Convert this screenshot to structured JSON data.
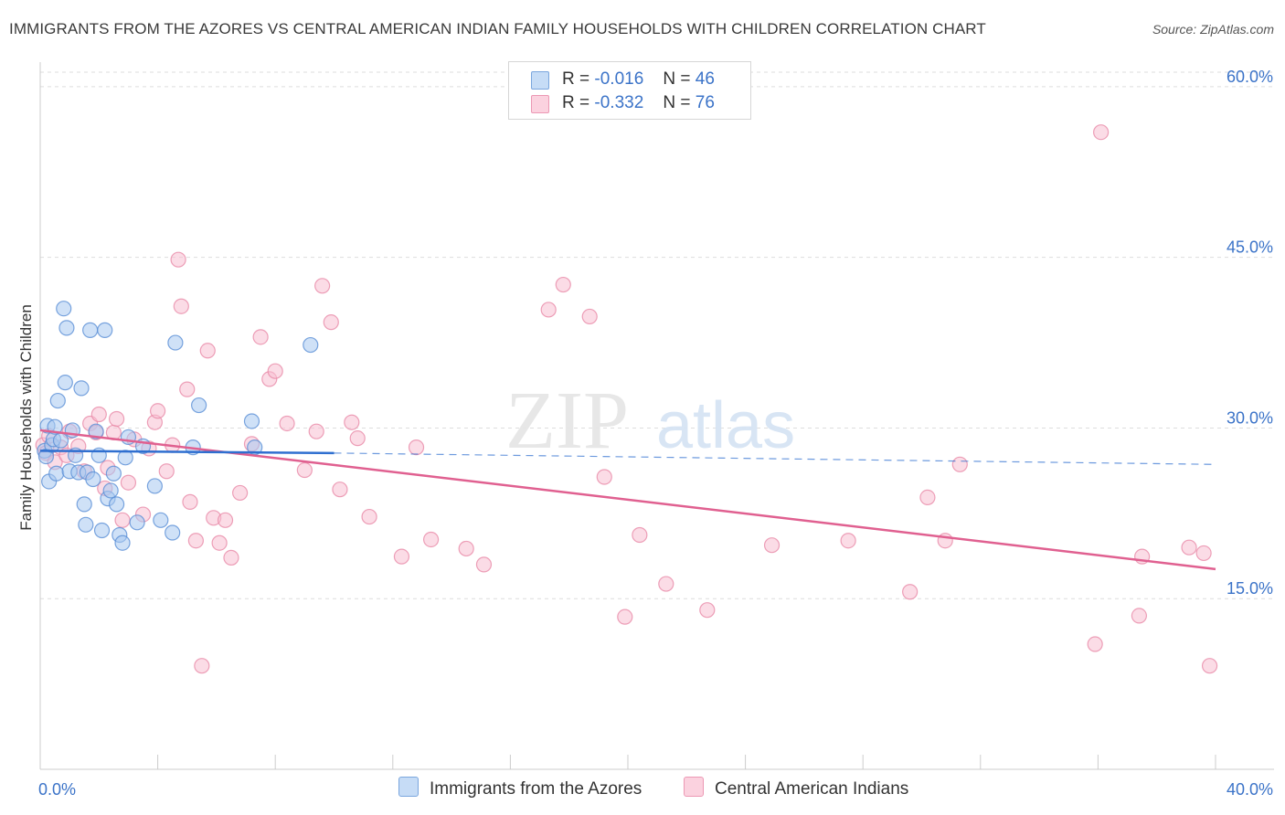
{
  "title": "IMMIGRANTS FROM THE AZORES VS CENTRAL AMERICAN INDIAN FAMILY HOUSEHOLDS WITH CHILDREN CORRELATION CHART",
  "source": "Source: ZipAtlas.com",
  "watermark": {
    "zip": "ZIP",
    "atlas": "atlas"
  },
  "legend": [
    {
      "r_label": "R =",
      "r_value": "-0.016",
      "n_label": "N =",
      "n_value": "46",
      "color": "#a8c8f0"
    },
    {
      "r_label": "R =",
      "r_value": "-0.332",
      "n_label": "N =",
      "n_value": "76",
      "color": "#f8b8cc"
    }
  ],
  "colors": {
    "blue_fill": "#a8c8f0",
    "blue_stroke": "#5a8fd6",
    "blue_line": "#2f6fd0",
    "pink_fill": "#f8c0d2",
    "pink_stroke": "#e88aa8",
    "pink_line": "#e06090",
    "axis_label": "#3b73c8",
    "grid": "#dddddd"
  },
  "chart_data": {
    "type": "scatter",
    "title": "IMMIGRANTS FROM THE AZORES VS CENTRAL AMERICAN INDIAN FAMILY HOUSEHOLDS WITH CHILDREN CORRELATION CHART",
    "xlabel": "",
    "ylabel": "Family Households with Children",
    "xlim": [
      0,
      40
    ],
    "ylim": [
      0,
      62
    ],
    "x_tick_labels": [
      "0.0%",
      "40.0%"
    ],
    "y_ticks": [
      15,
      30,
      45,
      60
    ],
    "y_tick_labels": [
      "15.0%",
      "30.0%",
      "45.0%",
      "60.0%"
    ],
    "grid": true,
    "series": [
      {
        "name": "Immigrants from the Azores",
        "x": [
          0.15,
          0.2,
          0.25,
          0.3,
          0.4,
          0.45,
          0.5,
          0.55,
          0.6,
          0.7,
          0.8,
          0.85,
          0.9,
          1.0,
          1.1,
          1.2,
          1.3,
          1.4,
          1.5,
          1.55,
          1.6,
          1.7,
          1.8,
          1.9,
          2.0,
          2.1,
          2.2,
          2.3,
          2.4,
          2.5,
          2.6,
          2.7,
          2.8,
          2.9,
          3.0,
          3.3,
          3.5,
          3.9,
          4.1,
          4.5,
          4.6,
          5.2,
          5.4,
          7.2,
          7.3,
          9.2
        ],
        "y": [
          28.0,
          27.5,
          30.2,
          25.3,
          28.5,
          29.0,
          30.1,
          26.0,
          32.4,
          28.9,
          40.5,
          34.0,
          38.8,
          26.2,
          29.8,
          27.6,
          26.1,
          33.5,
          23.3,
          21.5,
          26.1,
          38.6,
          25.5,
          29.7,
          27.6,
          21.0,
          38.6,
          23.8,
          24.5,
          26.0,
          23.3,
          20.6,
          19.9,
          27.4,
          29.2,
          21.7,
          28.4,
          24.9,
          21.9,
          20.8,
          37.5,
          28.3,
          32.0,
          30.6,
          28.3,
          37.3
        ]
      },
      {
        "name": "Central American Indians",
        "x": [
          0.1,
          0.2,
          0.3,
          0.5,
          0.7,
          0.9,
          1.0,
          1.3,
          1.5,
          1.7,
          1.9,
          2.0,
          2.2,
          2.3,
          2.5,
          2.6,
          2.8,
          3.0,
          3.2,
          3.5,
          3.7,
          3.9,
          4.0,
          4.3,
          4.5,
          4.7,
          4.8,
          5.0,
          5.1,
          5.3,
          5.5,
          5.7,
          5.9,
          6.1,
          6.3,
          6.5,
          6.8,
          7.2,
          7.5,
          7.8,
          8.0,
          8.4,
          9.0,
          9.4,
          9.6,
          9.9,
          10.2,
          10.6,
          10.8,
          11.2,
          12.3,
          12.8,
          13.3,
          14.5,
          15.1,
          17.3,
          17.8,
          18.7,
          19.2,
          19.9,
          20.4,
          21.3,
          22.7,
          24.9,
          27.5,
          29.6,
          30.2,
          30.8,
          31.3,
          35.9,
          36.1,
          37.4,
          37.5,
          39.1,
          39.6,
          39.8
        ],
        "y": [
          28.5,
          27.8,
          29.3,
          27.0,
          28.3,
          27.6,
          29.7,
          28.4,
          26.2,
          30.4,
          29.6,
          31.2,
          24.7,
          26.5,
          29.6,
          30.8,
          21.9,
          25.2,
          29.0,
          22.4,
          28.2,
          30.5,
          31.5,
          26.2,
          28.5,
          44.8,
          40.7,
          33.4,
          23.5,
          20.1,
          9.1,
          36.8,
          22.1,
          19.9,
          21.9,
          18.6,
          24.3,
          28.6,
          38.0,
          34.3,
          35.0,
          30.4,
          26.3,
          29.7,
          42.5,
          39.3,
          24.6,
          30.5,
          29.1,
          22.2,
          18.7,
          28.3,
          20.2,
          19.4,
          18.0,
          40.4,
          42.6,
          39.8,
          25.7,
          13.4,
          20.6,
          16.3,
          14.0,
          19.7,
          20.1,
          15.6,
          23.9,
          20.1,
          26.8,
          11.0,
          56.0,
          13.5,
          18.7,
          19.5,
          19.0,
          9.1
        ]
      }
    ],
    "trend_lines": [
      {
        "series": "Immigrants from the Azores",
        "solid": [
          [
            0,
            28.0
          ],
          [
            10,
            27.8
          ]
        ],
        "dashed": [
          [
            10,
            27.8
          ],
          [
            40,
            26.8
          ]
        ]
      },
      {
        "series": "Central American Indians",
        "solid": [
          [
            0,
            29.8
          ],
          [
            40,
            17.6
          ]
        ]
      }
    ]
  }
}
